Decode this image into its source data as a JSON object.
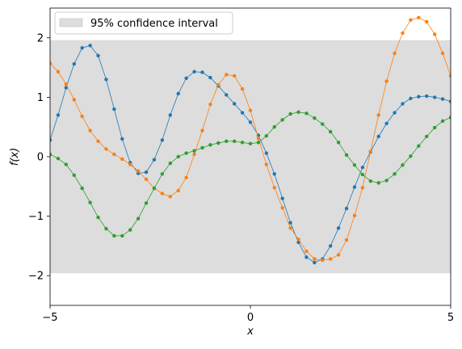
{
  "chart_data": {
    "type": "line",
    "xlabel": "x",
    "ylabel": "f(x)",
    "xlim": [
      -5,
      5
    ],
    "ylim": [
      -2.5,
      2.5
    ],
    "xticks": [
      -5,
      0,
      5
    ],
    "yticks": [
      -2,
      -1,
      0,
      1,
      2
    ],
    "xtick_labels": [
      "−5",
      "0",
      "5"
    ],
    "ytick_labels": [
      "−2",
      "−1",
      "0",
      "1",
      "2"
    ],
    "legend": {
      "placement": "top-left",
      "label": "95% confidence interval"
    },
    "confidence_band": {
      "lower": -1.96,
      "upper": 1.96,
      "color": "#dddddd"
    },
    "series": [
      {
        "color": "#1f77b4",
        "x": [
          -5.0,
          -4.8,
          -4.6,
          -4.4,
          -4.2,
          -4.0,
          -3.8,
          -3.6,
          -3.4,
          -3.2,
          -3.0,
          -2.8,
          -2.6,
          -2.4,
          -2.2,
          -2.0,
          -1.8,
          -1.6,
          -1.4,
          -1.2,
          -1.0,
          -0.8,
          -0.6,
          -0.4,
          -0.2,
          0.0,
          0.2,
          0.4,
          0.6,
          0.8,
          1.0,
          1.2,
          1.4,
          1.6,
          1.8,
          2.0,
          2.2,
          2.4,
          2.6,
          2.8,
          3.0,
          3.2,
          3.4,
          3.6,
          3.8,
          4.0,
          4.2,
          4.4,
          4.6,
          4.8,
          5.0
        ],
        "y": [
          0.28,
          0.7,
          1.16,
          1.56,
          1.83,
          1.87,
          1.7,
          1.3,
          0.8,
          0.3,
          -0.1,
          -0.28,
          -0.26,
          -0.05,
          0.28,
          0.7,
          1.06,
          1.32,
          1.43,
          1.42,
          1.33,
          1.19,
          1.04,
          0.89,
          0.74,
          0.58,
          0.36,
          0.06,
          -0.29,
          -0.7,
          -1.11,
          -1.44,
          -1.69,
          -1.78,
          -1.72,
          -1.5,
          -1.2,
          -0.87,
          -0.51,
          -0.18,
          0.08,
          0.34,
          0.56,
          0.74,
          0.89,
          0.98,
          1.01,
          1.02,
          1.0,
          0.97,
          0.93
        ]
      },
      {
        "color": "#ff7f0e",
        "x": [
          -5.0,
          -4.8,
          -4.6,
          -4.4,
          -4.2,
          -4.0,
          -3.8,
          -3.6,
          -3.4,
          -3.2,
          -3.0,
          -2.8,
          -2.6,
          -2.4,
          -2.2,
          -2.0,
          -1.8,
          -1.6,
          -1.4,
          -1.2,
          -1.0,
          -0.8,
          -0.6,
          -0.4,
          -0.2,
          0.0,
          0.2,
          0.4,
          0.6,
          0.8,
          1.0,
          1.2,
          1.4,
          1.6,
          1.8,
          2.0,
          2.2,
          2.4,
          2.6,
          2.8,
          3.0,
          3.2,
          3.4,
          3.6,
          3.8,
          4.0,
          4.2,
          4.4,
          4.6,
          4.8,
          5.0
        ],
        "y": [
          1.57,
          1.43,
          1.22,
          0.96,
          0.68,
          0.44,
          0.26,
          0.13,
          0.04,
          -0.04,
          -0.13,
          -0.24,
          -0.38,
          -0.53,
          -0.62,
          -0.67,
          -0.57,
          -0.35,
          0.04,
          0.44,
          0.88,
          1.21,
          1.38,
          1.36,
          1.14,
          0.78,
          0.31,
          -0.13,
          -0.52,
          -0.86,
          -1.2,
          -1.39,
          -1.59,
          -1.72,
          -1.74,
          -1.72,
          -1.65,
          -1.4,
          -0.99,
          -0.52,
          0.09,
          0.7,
          1.27,
          1.74,
          2.08,
          2.3,
          2.34,
          2.27,
          2.06,
          1.74,
          1.36
        ]
      },
      {
        "color": "#2ca02c",
        "x": [
          -5.0,
          -4.8,
          -4.6,
          -4.4,
          -4.2,
          -4.0,
          -3.8,
          -3.6,
          -3.4,
          -3.2,
          -3.0,
          -2.8,
          -2.6,
          -2.4,
          -2.2,
          -2.0,
          -1.8,
          -1.6,
          -1.4,
          -1.2,
          -1.0,
          -0.8,
          -0.6,
          -0.4,
          -0.2,
          0.0,
          0.2,
          0.4,
          0.6,
          0.8,
          1.0,
          1.2,
          1.4,
          1.6,
          1.8,
          2.0,
          2.2,
          2.4,
          2.6,
          2.8,
          3.0,
          3.2,
          3.4,
          3.6,
          3.8,
          4.0,
          4.2,
          4.4,
          4.6,
          4.8,
          5.0
        ],
        "y": [
          0.04,
          -0.03,
          -0.13,
          -0.31,
          -0.53,
          -0.77,
          -1.02,
          -1.21,
          -1.33,
          -1.33,
          -1.23,
          -1.04,
          -0.78,
          -0.53,
          -0.29,
          -0.11,
          0.0,
          0.06,
          0.1,
          0.15,
          0.2,
          0.23,
          0.26,
          0.26,
          0.24,
          0.22,
          0.24,
          0.35,
          0.5,
          0.62,
          0.72,
          0.75,
          0.73,
          0.65,
          0.55,
          0.42,
          0.24,
          0.03,
          -0.14,
          -0.3,
          -0.41,
          -0.44,
          -0.4,
          -0.29,
          -0.14,
          0.01,
          0.18,
          0.34,
          0.49,
          0.6,
          0.66
        ]
      }
    ]
  }
}
